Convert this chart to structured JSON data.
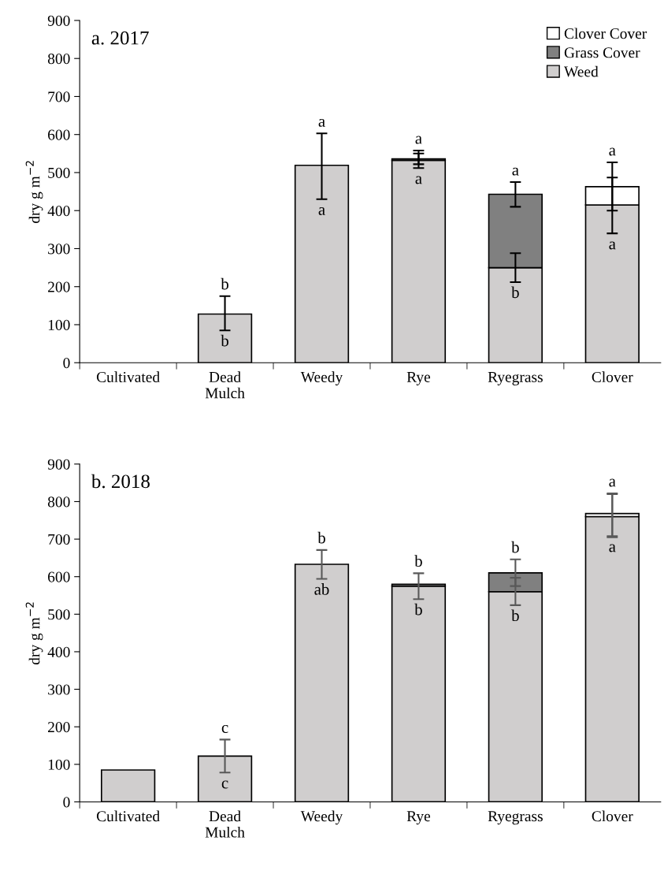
{
  "chart_data": [
    {
      "type": "bar",
      "stacked": true,
      "title": "a. 2017",
      "ylabel": "dry g m$^{−2}$",
      "categories": [
        "Cultivated",
        "Dead\nMulch",
        "Weedy",
        "Rye",
        "Ryegrass",
        "Clover"
      ],
      "ylim": [
        0,
        900
      ],
      "yticks": [
        0,
        100,
        200,
        300,
        400,
        500,
        600,
        700,
        800,
        900
      ],
      "legend": "top right",
      "grid": false,
      "series": [
        {
          "name": "Weed",
          "color": "#d0cece",
          "values": [
            0,
            128,
            519,
            532,
            250,
            415
          ],
          "errors": [
            null,
            [
              85,
              175
            ],
            [
              430,
              603
            ],
            [
              512,
              550
            ],
            [
              212,
              288
            ],
            [
              340,
              487
            ]
          ],
          "value_labels": [
            null,
            "b",
            "a",
            "a",
            "b",
            "a"
          ]
        },
        {
          "name": "Grass Cover",
          "color": "#808080",
          "values": [
            0,
            0,
            0,
            4,
            193,
            0
          ],
          "errors": [
            null,
            null,
            null,
            [
              522,
              558
            ],
            [
              410,
              475
            ],
            null
          ]
        },
        {
          "name": "Clover Cover",
          "color": "#ffffff",
          "values": [
            0,
            0,
            0,
            0,
            0,
            48
          ],
          "errors": [
            null,
            null,
            null,
            null,
            null,
            [
              400,
              527
            ]
          ]
        }
      ],
      "totals": [
        null,
        "b",
        "a",
        "a",
        "a",
        "a"
      ]
    },
    {
      "type": "bar",
      "stacked": true,
      "title": "b. 2018",
      "ylabel": "dry g m$^{−2}$",
      "categories": [
        "Cultivated",
        "Dead\nMulch",
        "Weedy",
        "Rye",
        "Ryegrass",
        "Clover"
      ],
      "ylim": [
        0,
        900
      ],
      "yticks": [
        0,
        100,
        200,
        300,
        400,
        500,
        600,
        700,
        800,
        900
      ],
      "grid": false,
      "series": [
        {
          "color": "#d0cece",
          "values": [
            85,
            122,
            633,
            575,
            560,
            760
          ],
          "errors": [
            null,
            [
              78,
              166
            ],
            [
              594,
              671
            ],
            [
              540,
              609
            ],
            [
              524,
              597
            ],
            [
              708,
              820
            ]
          ],
          "value_labels": [
            null,
            "c",
            "ab",
            "b",
            "b",
            "a"
          ]
        },
        {
          "color": "#808080",
          "values": [
            0,
            0,
            0,
            5,
            50,
            0
          ],
          "errors": [
            null,
            null,
            null,
            null,
            [
              575,
              646
            ],
            null
          ]
        },
        {
          "color": "#ffffff",
          "values": [
            0,
            0,
            0,
            0,
            0,
            8
          ],
          "errors": [
            null,
            null,
            null,
            null,
            null,
            [
              705,
              822
            ]
          ]
        }
      ],
      "totals": [
        null,
        "c",
        "b",
        "b",
        "b",
        "a"
      ]
    }
  ]
}
